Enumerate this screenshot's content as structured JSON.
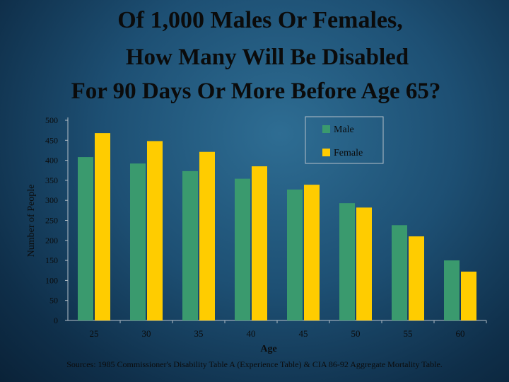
{
  "title_lines": [
    "Of 1,000 Males Or Females,",
    "How Many Will Be Disabled",
    "For 90 Days Or More Before Age 65?"
  ],
  "source": "Sources: 1985 Commissioner's Disability Table A (Experience Table) & CIA 86-92 Aggregate Mortality Table.",
  "colors": {
    "male": "#3a9a6e",
    "female": "#ffcc00",
    "axis": "#b5bfc8",
    "text": "#0b0b0b"
  },
  "chart_data": {
    "type": "bar",
    "categories": [
      "25",
      "30",
      "35",
      "40",
      "45",
      "50",
      "55",
      "60"
    ],
    "series": [
      {
        "name": "Male",
        "values": [
          408,
          392,
          373,
          354,
          327,
          293,
          238,
          150
        ]
      },
      {
        "name": "Female",
        "values": [
          468,
          448,
          421,
          385,
          339,
          282,
          210,
          122
        ]
      }
    ],
    "xlabel": "Age",
    "ylabel": "Number of People",
    "ylim": [
      0,
      500
    ],
    "yticks": [
      "0",
      "50",
      "100",
      "150",
      "200",
      "250",
      "300",
      "350",
      "400",
      "450",
      "500"
    ],
    "legend_position": "top-right",
    "grid": false
  }
}
